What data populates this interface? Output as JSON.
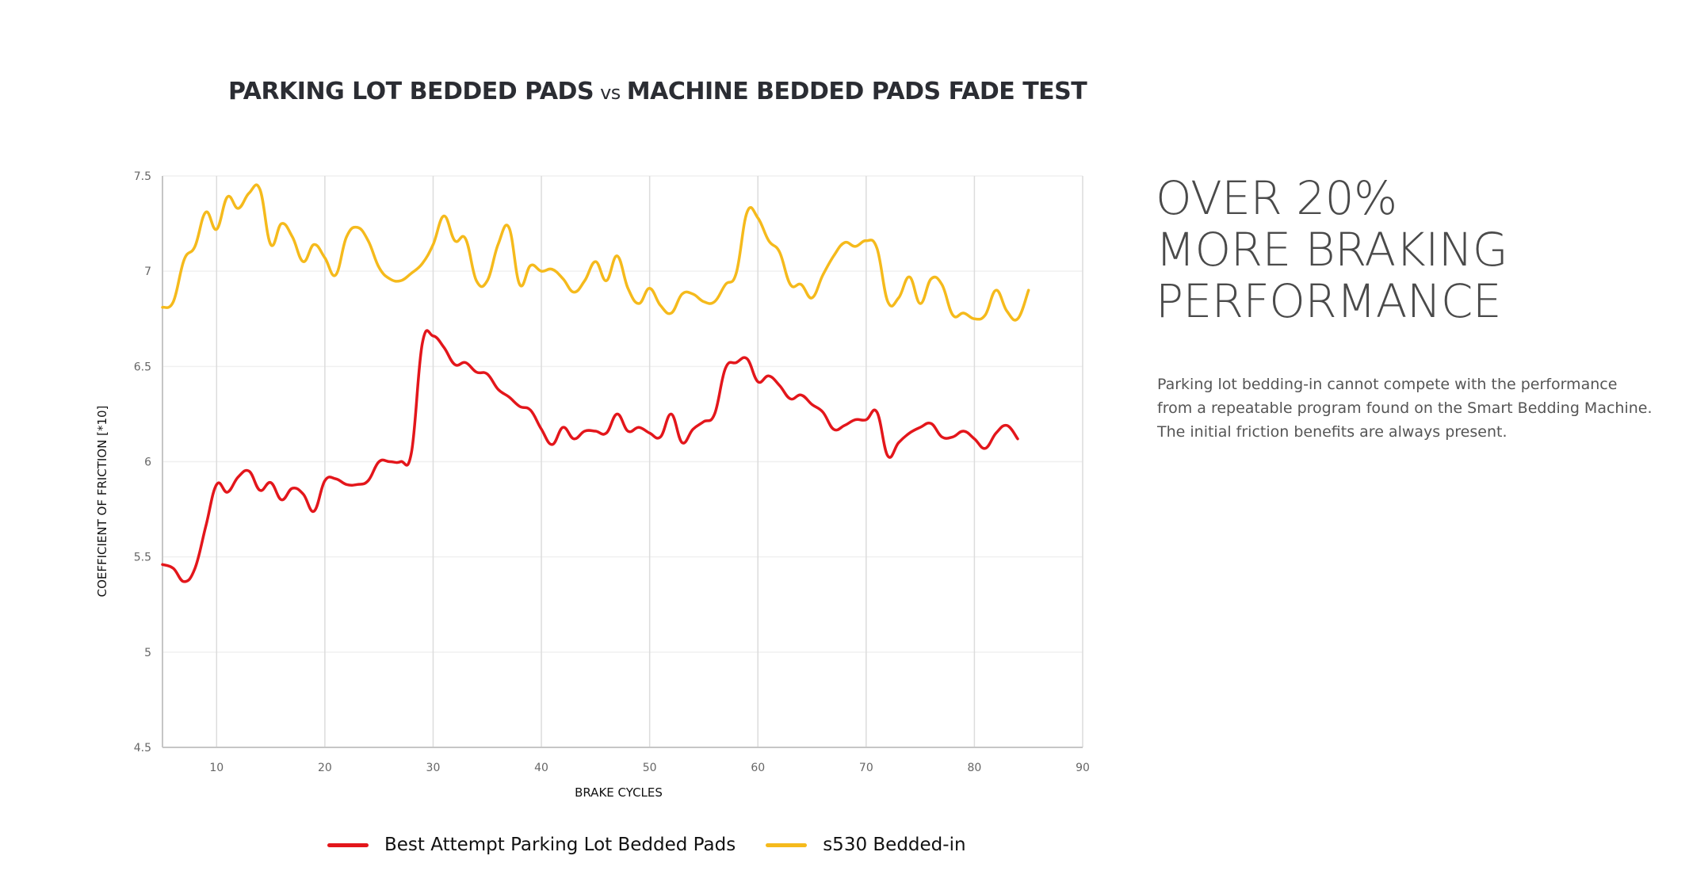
{
  "title": {
    "part1": "PARKING LOT BEDDED PADS",
    "vs": "vs",
    "part2": "MACHINE BEDDED PADS FADE TEST"
  },
  "headline": {
    "lines": [
      "OVER 20%",
      "MORE BRAKING",
      "PERFORMANCE"
    ]
  },
  "body_text": {
    "lines": [
      "Parking lot bedding-in cannot compete with the performance",
      "from a repeatable program found on the Smart Bedding Machine.",
      "The initial friction benefits are always present."
    ]
  },
  "colors": {
    "red_series": "#e3161b",
    "yellow_series": "#f5ba1c",
    "title_text": "#2b2d33",
    "headline_text": "#4a4a4a",
    "grid": "#dcdcdc"
  },
  "chart_data": {
    "type": "line",
    "title": "PARKING LOT BEDDED PADS vs MACHINE BEDDED PADS FADE TEST",
    "xlabel": "BRAKE CYCLES",
    "ylabel": "COEFFICIENT OF FRICTION [*10]",
    "xlim": [
      5,
      90
    ],
    "ylim": [
      4.5,
      7.5
    ],
    "x_ticks": [
      10,
      20,
      30,
      40,
      50,
      60,
      70,
      80,
      90
    ],
    "y_ticks": [
      4.5,
      5,
      5.5,
      6,
      6.5,
      7,
      7.5
    ],
    "x_tick_labels": [
      "10",
      "20",
      "30",
      "40",
      "50",
      "60",
      "70",
      "80",
      "90"
    ],
    "y_tick_labels": [
      "4.5",
      "5",
      "5.5",
      "6",
      "6.5",
      "7",
      "7.5"
    ],
    "grid": true,
    "smooth": true,
    "legend_position": "bottom",
    "series": [
      {
        "name": "Best Attempt Parking Lot Bedded Pads",
        "color": "#e3161b",
        "x": [
          5,
          6,
          7,
          8,
          9,
          10,
          11,
          12,
          13,
          14,
          15,
          16,
          17,
          18,
          19,
          20,
          21,
          22,
          23,
          24,
          25,
          26,
          27,
          28,
          29,
          30,
          31,
          32,
          33,
          34,
          35,
          36,
          37,
          38,
          39,
          40,
          41,
          42,
          43,
          44,
          45,
          46,
          47,
          48,
          49,
          50,
          51,
          52,
          53,
          54,
          55,
          56,
          57,
          58,
          59,
          60,
          61,
          62,
          63,
          64,
          65,
          66,
          67,
          68,
          69,
          70,
          71,
          72,
          73,
          74,
          75,
          76,
          77,
          78,
          79,
          80,
          81,
          82,
          83,
          84
        ],
        "y": [
          5.46,
          5.44,
          5.37,
          5.44,
          5.66,
          5.88,
          5.84,
          5.92,
          5.95,
          5.85,
          5.89,
          5.8,
          5.86,
          5.83,
          5.74,
          5.9,
          5.91,
          5.88,
          5.88,
          5.9,
          6.0,
          6.0,
          6.0,
          6.05,
          6.62,
          6.66,
          6.6,
          6.51,
          6.52,
          6.47,
          6.46,
          6.38,
          6.34,
          6.29,
          6.27,
          6.17,
          6.09,
          6.18,
          6.12,
          6.16,
          6.16,
          6.15,
          6.25,
          6.16,
          6.18,
          6.15,
          6.13,
          6.25,
          6.1,
          6.17,
          6.21,
          6.25,
          6.49,
          6.52,
          6.54,
          6.42,
          6.45,
          6.4,
          6.33,
          6.35,
          6.3,
          6.26,
          6.17,
          6.19,
          6.22,
          6.22,
          6.26,
          6.03,
          6.1,
          6.15,
          6.18,
          6.2,
          6.13,
          6.13,
          6.16,
          6.12,
          6.07,
          6.15,
          6.19,
          6.12
        ]
      },
      {
        "name": "s530 Bedded-in",
        "color": "#f5ba1c",
        "x": [
          5,
          6,
          7,
          8,
          9,
          10,
          11,
          12,
          13,
          14,
          15,
          16,
          17,
          18,
          19,
          20,
          21,
          22,
          23,
          24,
          25,
          26,
          27,
          28,
          29,
          30,
          31,
          32,
          33,
          34,
          35,
          36,
          37,
          38,
          39,
          40,
          41,
          42,
          43,
          44,
          45,
          46,
          47,
          48,
          49,
          50,
          51,
          52,
          53,
          54,
          55,
          56,
          57,
          58,
          59,
          60,
          61,
          62,
          63,
          64,
          65,
          66,
          67,
          68,
          69,
          70,
          71,
          72,
          73,
          74,
          75,
          76,
          77,
          78,
          79,
          80,
          81,
          82,
          83,
          84,
          85
        ],
        "y": [
          6.81,
          6.84,
          7.06,
          7.13,
          7.31,
          7.22,
          7.39,
          7.33,
          7.41,
          7.43,
          7.14,
          7.25,
          7.18,
          7.05,
          7.14,
          7.07,
          6.98,
          7.18,
          7.23,
          7.16,
          7.02,
          6.96,
          6.95,
          6.99,
          7.04,
          7.14,
          7.29,
          7.16,
          7.17,
          6.95,
          6.95,
          7.14,
          7.23,
          6.93,
          7.03,
          7.0,
          7.01,
          6.96,
          6.89,
          6.95,
          7.05,
          6.95,
          7.08,
          6.91,
          6.83,
          6.91,
          6.82,
          6.78,
          6.88,
          6.88,
          6.84,
          6.84,
          6.93,
          6.99,
          7.31,
          7.28,
          7.16,
          7.1,
          6.93,
          6.93,
          6.86,
          6.98,
          7.08,
          7.15,
          7.13,
          7.16,
          7.12,
          6.84,
          6.86,
          6.97,
          6.83,
          6.96,
          6.93,
          6.77,
          6.78,
          6.75,
          6.77,
          6.9,
          6.79,
          6.75,
          6.9
        ]
      }
    ]
  }
}
